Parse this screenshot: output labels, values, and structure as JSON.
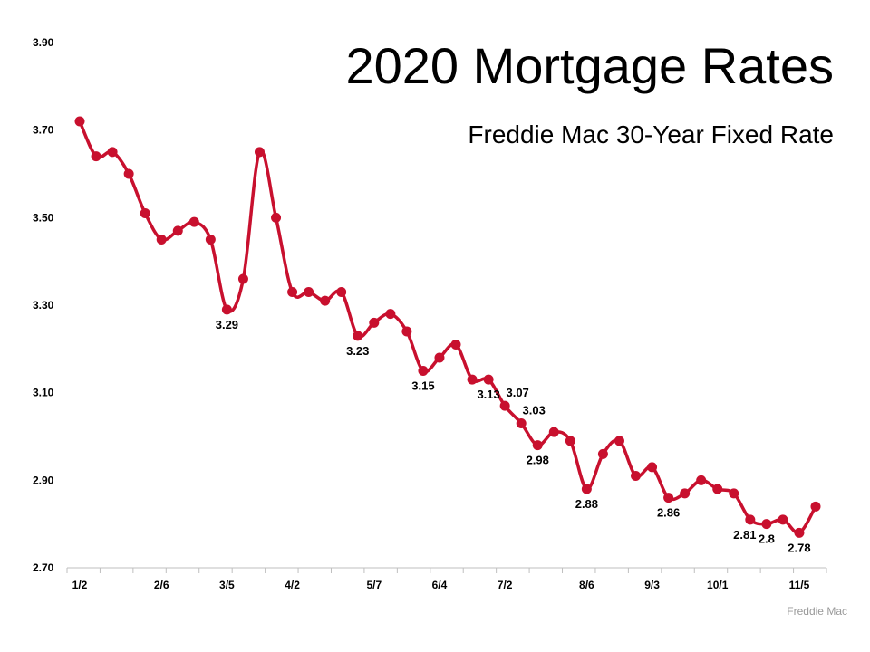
{
  "chart_data": {
    "type": "line",
    "title": "2020 Mortgage Rates",
    "subtitle": "Freddie Mac 30-Year Fixed Rate",
    "source": "Freddie Mac",
    "xlabel": "",
    "ylabel": "",
    "ylim": [
      2.7,
      3.9
    ],
    "yticks": [
      "3.90",
      "3.70",
      "3.50",
      "3.30",
      "3.10",
      "2.90",
      "2.70"
    ],
    "xtick_labels": [
      {
        "index": 0,
        "label": "1/2"
      },
      {
        "index": 5,
        "label": "2/6"
      },
      {
        "index": 9,
        "label": "3/5"
      },
      {
        "index": 13,
        "label": "4/2"
      },
      {
        "index": 18,
        "label": "5/7"
      },
      {
        "index": 22,
        "label": "6/4"
      },
      {
        "index": 26,
        "label": "7/2"
      },
      {
        "index": 31,
        "label": "8/6"
      },
      {
        "index": 35,
        "label": "9/3"
      },
      {
        "index": 39,
        "label": "10/1"
      },
      {
        "index": 44,
        "label": "11/5"
      }
    ],
    "grid": false,
    "legend": "none",
    "series": [
      {
        "color": "#c8102e",
        "values": [
          3.72,
          3.64,
          3.65,
          3.6,
          3.51,
          3.45,
          3.47,
          3.49,
          3.45,
          3.29,
          3.36,
          3.65,
          3.5,
          3.33,
          3.33,
          3.31,
          3.33,
          3.23,
          3.26,
          3.28,
          3.24,
          3.15,
          3.18,
          3.21,
          3.13,
          3.13,
          3.07,
          3.03,
          2.98,
          3.01,
          2.99,
          2.88,
          2.96,
          2.99,
          2.91,
          2.93,
          2.86,
          2.87,
          2.9,
          2.88,
          2.87,
          2.81,
          2.8,
          2.81,
          2.78,
          2.84
        ]
      }
    ],
    "data_labels": [
      {
        "index": 9,
        "text": "3.29",
        "pos": "below"
      },
      {
        "index": 17,
        "text": "3.23",
        "pos": "below"
      },
      {
        "index": 21,
        "text": "3.15",
        "pos": "below"
      },
      {
        "index": 25,
        "text": "3.13",
        "pos": "below"
      },
      {
        "index": 26,
        "text": "3.07",
        "pos": "above-right"
      },
      {
        "index": 27,
        "text": "3.03",
        "pos": "above-right"
      },
      {
        "index": 28,
        "text": "2.98",
        "pos": "below"
      },
      {
        "index": 31,
        "text": "2.88",
        "pos": "below"
      },
      {
        "index": 36,
        "text": "2.86",
        "pos": "below"
      },
      {
        "index": 41,
        "text": "2.81",
        "pos": "below-left"
      },
      {
        "index": 42,
        "text": "2.8",
        "pos": "below"
      },
      {
        "index": 44,
        "text": "2.78",
        "pos": "below"
      }
    ]
  }
}
